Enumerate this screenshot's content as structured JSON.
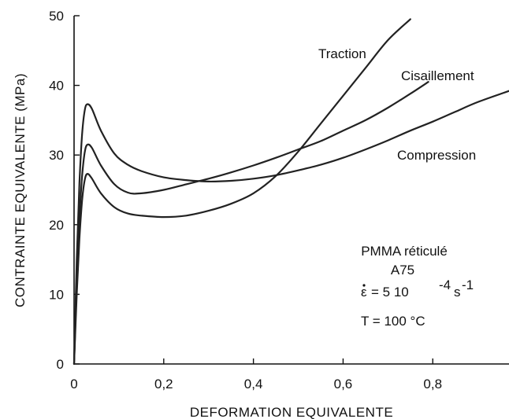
{
  "chart_data": {
    "type": "line",
    "xlabel": "DEFORMATION EQUIVALENTE",
    "ylabel": "CONTRAINTE EQUIVALENTE  (MPa)",
    "xlim": [
      0,
      0.97
    ],
    "ylim": [
      0,
      50
    ],
    "x_ticks": [
      "0",
      "0,2",
      "0,4",
      "0,6",
      "0,8"
    ],
    "x_tick_values": [
      0,
      0.2,
      0.4,
      0.6,
      0.8
    ],
    "y_ticks": [
      "0",
      "10",
      "20",
      "30",
      "40",
      "50"
    ],
    "y_tick_values": [
      0,
      10,
      20,
      30,
      40,
      50
    ],
    "grid": false,
    "series": [
      {
        "name": "Traction",
        "x": [
          0,
          0.006,
          0.012,
          0.018,
          0.024,
          0.03,
          0.04,
          0.06,
          0.09,
          0.12,
          0.15,
          0.2,
          0.25,
          0.3,
          0.35,
          0.4,
          0.45,
          0.5,
          0.55,
          0.6,
          0.65,
          0.7,
          0.75
        ],
        "y": [
          0,
          10,
          18,
          23.5,
          26.5,
          27.3,
          26.6,
          24.5,
          22.5,
          21.6,
          21.3,
          21.1,
          21.3,
          22,
          23,
          24.5,
          27,
          30.5,
          34.5,
          38.5,
          42.5,
          46.5,
          49.5
        ]
      },
      {
        "name": "Cisaillement",
        "x": [
          0,
          0.006,
          0.012,
          0.018,
          0.024,
          0.03,
          0.04,
          0.06,
          0.09,
          0.12,
          0.15,
          0.2,
          0.25,
          0.3,
          0.35,
          0.4,
          0.45,
          0.5,
          0.55,
          0.6,
          0.65,
          0.7,
          0.75,
          0.79
        ],
        "y": [
          0,
          12,
          21,
          27,
          30.5,
          31.5,
          31,
          28.5,
          25.8,
          24.6,
          24.5,
          25,
          25.8,
          26.6,
          27.5,
          28.5,
          29.6,
          30.8,
          32,
          33.5,
          35,
          36.8,
          38.8,
          40.5
        ]
      },
      {
        "name": "Compression",
        "x": [
          0,
          0.006,
          0.012,
          0.018,
          0.024,
          0.03,
          0.04,
          0.06,
          0.09,
          0.12,
          0.15,
          0.2,
          0.25,
          0.3,
          0.35,
          0.4,
          0.45,
          0.5,
          0.55,
          0.6,
          0.65,
          0.7,
          0.75,
          0.8,
          0.85,
          0.9,
          0.97
        ],
        "y": [
          0,
          15,
          26,
          33,
          36.5,
          37.3,
          36.6,
          33.5,
          30.2,
          28.6,
          27.7,
          26.8,
          26.4,
          26.2,
          26.3,
          26.6,
          27.1,
          27.8,
          28.6,
          29.6,
          30.8,
          32.1,
          33.5,
          34.8,
          36.2,
          37.6,
          39.2
        ]
      }
    ],
    "curve_labels": [
      {
        "text": "Traction"
      },
      {
        "text": "Cisaillement"
      },
      {
        "text": "Compression"
      }
    ],
    "annotation": {
      "material": "PMMA réticulé",
      "grade": "A75",
      "rate_eq": "= 5 10",
      "rate_exp": "-4",
      "rate_unit": "s",
      "rate_unit_exp": "-1",
      "temperature": "T = 100  °C"
    }
  }
}
